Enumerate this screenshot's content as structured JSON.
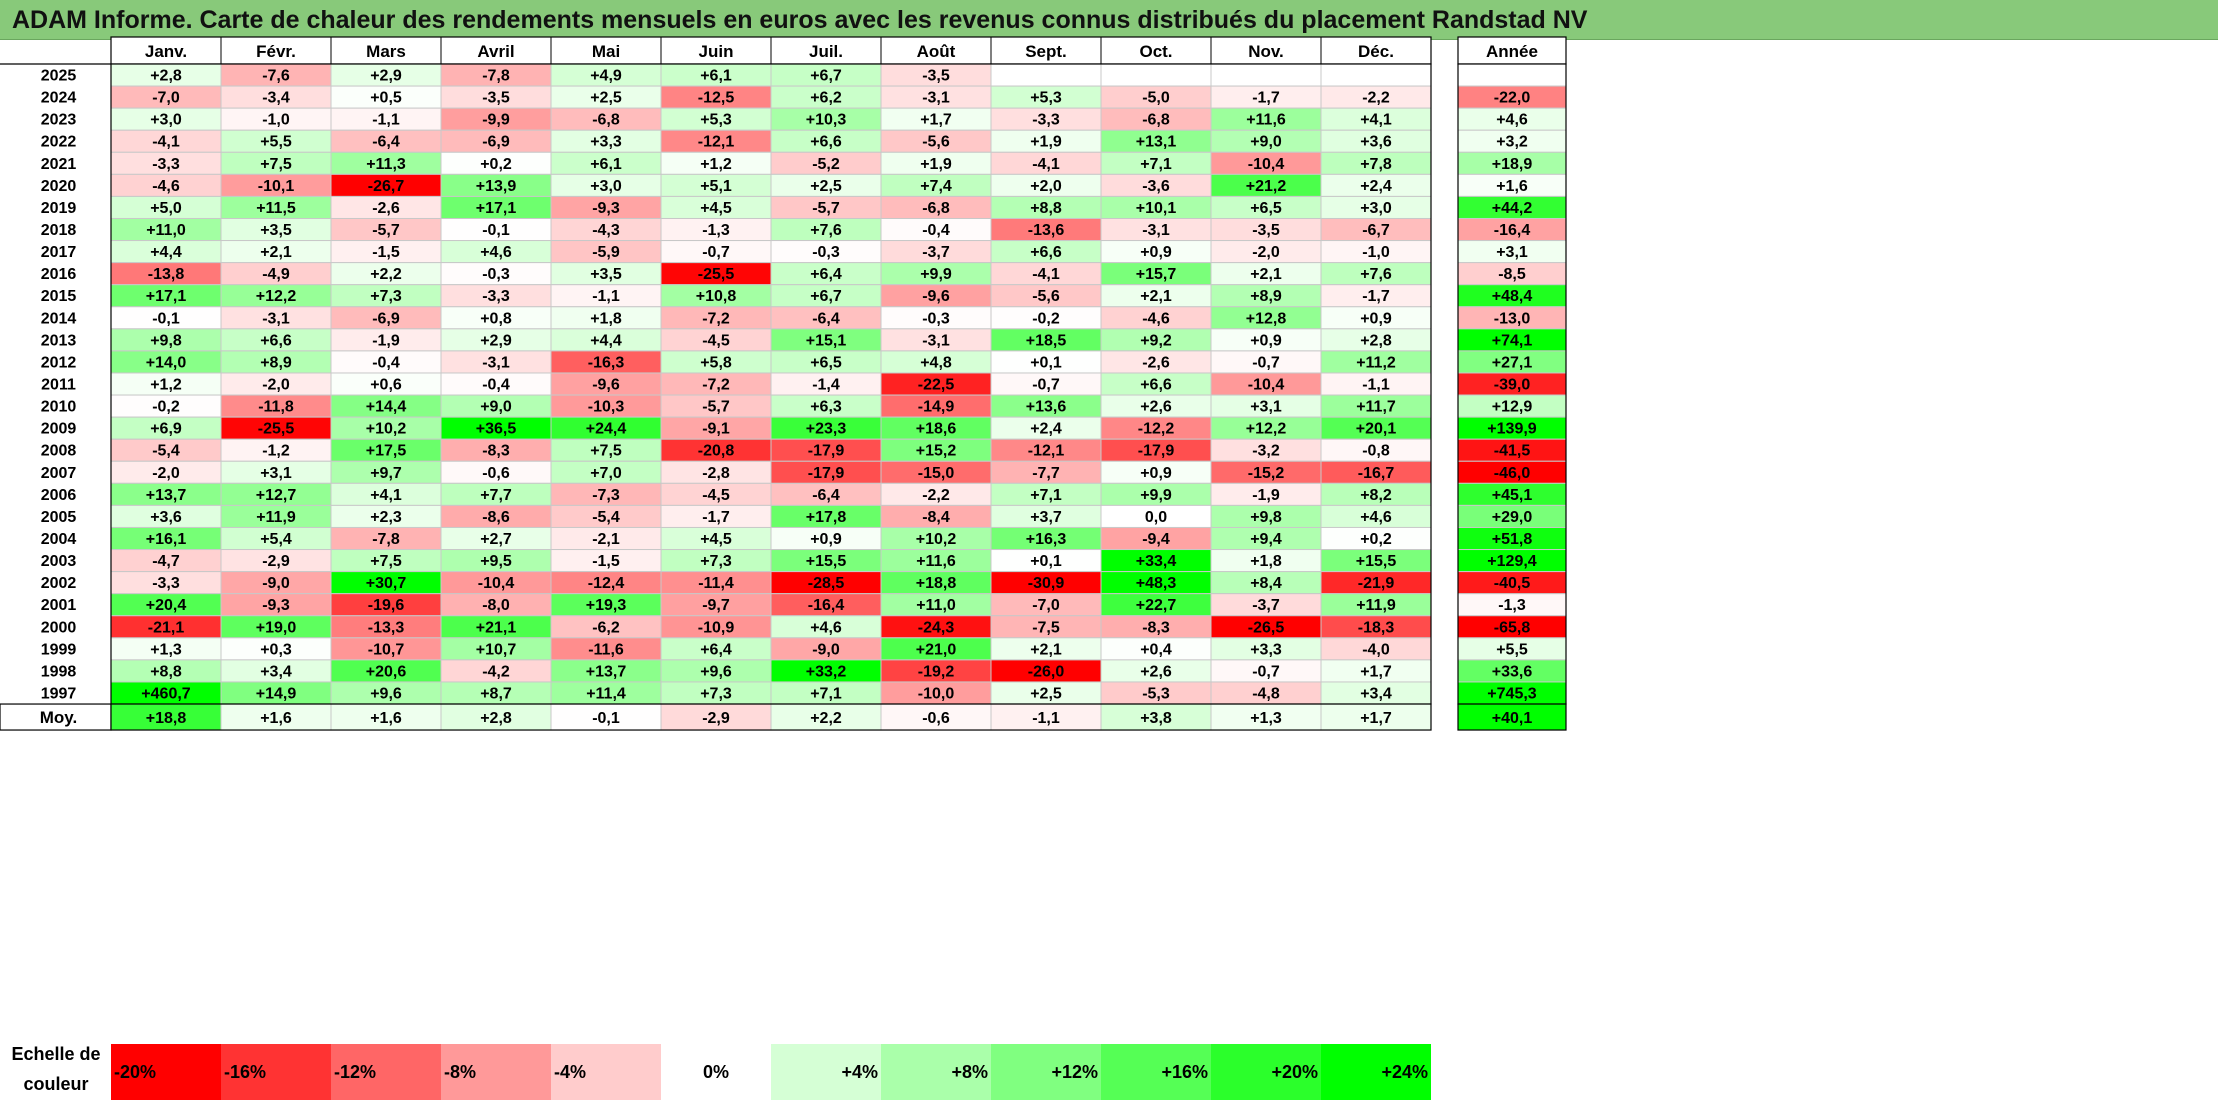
{
  "title": "ADAM Informe. Carte de chaleur des rendements mensuels en euros avec les revenus connus distribués du placement Randstad NV",
  "chart_data": {
    "type": "heatmap",
    "months": [
      "Janv.",
      "Févr.",
      "Mars",
      "Avril",
      "Mai",
      "Juin",
      "Juil.",
      "Août",
      "Sept.",
      "Oct.",
      "Nov.",
      "Déc."
    ],
    "annual_header": "Année",
    "rows": [
      {
        "year": "2025",
        "values": [
          "+2,8",
          "-7,6",
          "+2,9",
          "-7,8",
          "+4,9",
          "+6,1",
          "+6,7",
          "-3,5",
          "",
          "",
          "",
          ""
        ],
        "annual": ""
      },
      {
        "year": "2024",
        "values": [
          "-7,0",
          "-3,4",
          "+0,5",
          "-3,5",
          "+2,5",
          "-12,5",
          "+6,2",
          "-3,1",
          "+5,3",
          "-5,0",
          "-1,7",
          "-2,2"
        ],
        "annual": "-22,0"
      },
      {
        "year": "2023",
        "values": [
          "+3,0",
          "-1,0",
          "-1,1",
          "-9,9",
          "-6,8",
          "+5,3",
          "+10,3",
          "+1,7",
          "-3,3",
          "-6,8",
          "+11,6",
          "+4,1"
        ],
        "annual": "+4,6"
      },
      {
        "year": "2022",
        "values": [
          "-4,1",
          "+5,5",
          "-6,4",
          "-6,9",
          "+3,3",
          "-12,1",
          "+6,6",
          "-5,6",
          "+1,9",
          "+13,1",
          "+9,0",
          "+3,6"
        ],
        "annual": "+3,2"
      },
      {
        "year": "2021",
        "values": [
          "-3,3",
          "+7,5",
          "+11,3",
          "+0,2",
          "+6,1",
          "+1,2",
          "-5,2",
          "+1,9",
          "-4,1",
          "+7,1",
          "-10,4",
          "+7,8"
        ],
        "annual": "+18,9"
      },
      {
        "year": "2020",
        "values": [
          "-4,6",
          "-10,1",
          "-26,7",
          "+13,9",
          "+3,0",
          "+5,1",
          "+2,5",
          "+7,4",
          "+2,0",
          "-3,6",
          "+21,2",
          "+2,4"
        ],
        "annual": "+1,6"
      },
      {
        "year": "2019",
        "values": [
          "+5,0",
          "+11,5",
          "-2,6",
          "+17,1",
          "-9,3",
          "+4,5",
          "-5,7",
          "-6,8",
          "+8,8",
          "+10,1",
          "+6,5",
          "+3,0"
        ],
        "annual": "+44,2"
      },
      {
        "year": "2018",
        "values": [
          "+11,0",
          "+3,5",
          "-5,7",
          "-0,1",
          "-4,3",
          "-1,3",
          "+7,6",
          "-0,4",
          "-13,6",
          "-3,1",
          "-3,5",
          "-6,7"
        ],
        "annual": "-16,4"
      },
      {
        "year": "2017",
        "values": [
          "+4,4",
          "+2,1",
          "-1,5",
          "+4,6",
          "-5,9",
          "-0,7",
          "-0,3",
          "-3,7",
          "+6,6",
          "+0,9",
          "-2,0",
          "-1,0"
        ],
        "annual": "+3,1"
      },
      {
        "year": "2016",
        "values": [
          "-13,8",
          "-4,9",
          "+2,2",
          "-0,3",
          "+3,5",
          "-25,5",
          "+6,4",
          "+9,9",
          "-4,1",
          "+15,7",
          "+2,1",
          "+7,6"
        ],
        "annual": "-8,5"
      },
      {
        "year": "2015",
        "values": [
          "+17,1",
          "+12,2",
          "+7,3",
          "-3,3",
          "-1,1",
          "+10,8",
          "+6,7",
          "-9,6",
          "-5,6",
          "+2,1",
          "+8,9",
          "-1,7"
        ],
        "annual": "+48,4"
      },
      {
        "year": "2014",
        "values": [
          "-0,1",
          "-3,1",
          "-6,9",
          "+0,8",
          "+1,8",
          "-7,2",
          "-6,4",
          "-0,3",
          "-0,2",
          "-4,6",
          "+12,8",
          "+0,9"
        ],
        "annual": "-13,0"
      },
      {
        "year": "2013",
        "values": [
          "+9,8",
          "+6,6",
          "-1,9",
          "+2,9",
          "+4,4",
          "-4,5",
          "+15,1",
          "-3,1",
          "+18,5",
          "+9,2",
          "+0,9",
          "+2,8"
        ],
        "annual": "+74,1"
      },
      {
        "year": "2012",
        "values": [
          "+14,0",
          "+8,9",
          "-0,4",
          "-3,1",
          "-16,3",
          "+5,8",
          "+6,5",
          "+4,8",
          "+0,1",
          "-2,6",
          "-0,7",
          "+11,2"
        ],
        "annual": "+27,1"
      },
      {
        "year": "2011",
        "values": [
          "+1,2",
          "-2,0",
          "+0,6",
          "-0,4",
          "-9,6",
          "-7,2",
          "-1,4",
          "-22,5",
          "-0,7",
          "+6,6",
          "-10,4",
          "-1,1"
        ],
        "annual": "-39,0"
      },
      {
        "year": "2010",
        "values": [
          "-0,2",
          "-11,8",
          "+14,4",
          "+9,0",
          "-10,3",
          "-5,7",
          "+6,3",
          "-14,9",
          "+13,6",
          "+2,6",
          "+3,1",
          "+11,7"
        ],
        "annual": "+12,9"
      },
      {
        "year": "2009",
        "values": [
          "+6,9",
          "-25,5",
          "+10,2",
          "+36,5",
          "+24,4",
          "-9,1",
          "+23,3",
          "+18,6",
          "+2,4",
          "-12,2",
          "+12,2",
          "+20,1"
        ],
        "annual": "+139,9"
      },
      {
        "year": "2008",
        "values": [
          "-5,4",
          "-1,2",
          "+17,5",
          "-8,3",
          "+7,5",
          "-20,8",
          "-17,9",
          "+15,2",
          "-12,1",
          "-17,9",
          "-3,2",
          "-0,8"
        ],
        "annual": "-41,5"
      },
      {
        "year": "2007",
        "values": [
          "-2,0",
          "+3,1",
          "+9,7",
          "-0,6",
          "+7,0",
          "-2,8",
          "-17,9",
          "-15,0",
          "-7,7",
          "+0,9",
          "-15,2",
          "-16,7"
        ],
        "annual": "-46,0"
      },
      {
        "year": "2006",
        "values": [
          "+13,7",
          "+12,7",
          "+4,1",
          "+7,7",
          "-7,3",
          "-4,5",
          "-6,4",
          "-2,2",
          "+7,1",
          "+9,9",
          "-1,9",
          "+8,2"
        ],
        "annual": "+45,1"
      },
      {
        "year": "2005",
        "values": [
          "+3,6",
          "+11,9",
          "+2,3",
          "-8,6",
          "-5,4",
          "-1,7",
          "+17,8",
          "-8,4",
          "+3,7",
          "0,0",
          "+9,8",
          "+4,6"
        ],
        "annual": "+29,0"
      },
      {
        "year": "2004",
        "values": [
          "+16,1",
          "+5,4",
          "-7,8",
          "+2,7",
          "-2,1",
          "+4,5",
          "+0,9",
          "+10,2",
          "+16,3",
          "-9,4",
          "+9,4",
          "+0,2"
        ],
        "annual": "+51,8"
      },
      {
        "year": "2003",
        "values": [
          "-4,7",
          "-2,9",
          "+7,5",
          "+9,5",
          "-1,5",
          "+7,3",
          "+15,5",
          "+11,6",
          "+0,1",
          "+33,4",
          "+1,8",
          "+15,5"
        ],
        "annual": "+129,4"
      },
      {
        "year": "2002",
        "values": [
          "-3,3",
          "-9,0",
          "+30,7",
          "-10,4",
          "-12,4",
          "-11,4",
          "-28,5",
          "+18,8",
          "-30,9",
          "+48,3",
          "+8,4",
          "-21,9"
        ],
        "annual": "-40,5"
      },
      {
        "year": "2001",
        "values": [
          "+20,4",
          "-9,3",
          "-19,6",
          "-8,0",
          "+19,3",
          "-9,7",
          "-16,4",
          "+11,0",
          "-7,0",
          "+22,7",
          "-3,7",
          "+11,9"
        ],
        "annual": "-1,3"
      },
      {
        "year": "2000",
        "values": [
          "-21,1",
          "+19,0",
          "-13,3",
          "+21,1",
          "-6,2",
          "-10,9",
          "+4,6",
          "-24,3",
          "-7,5",
          "-8,3",
          "-26,5",
          "-18,3"
        ],
        "annual": "-65,8"
      },
      {
        "year": "1999",
        "values": [
          "+1,3",
          "+0,3",
          "-10,7",
          "+10,7",
          "-11,6",
          "+6,4",
          "-9,0",
          "+21,0",
          "+2,1",
          "+0,4",
          "+3,3",
          "-4,0"
        ],
        "annual": "+5,5"
      },
      {
        "year": "1998",
        "values": [
          "+8,8",
          "+3,4",
          "+20,6",
          "-4,2",
          "+13,7",
          "+9,6",
          "+33,2",
          "-19,2",
          "-26,0",
          "+2,6",
          "-0,7",
          "+1,7"
        ],
        "annual": "+33,6"
      },
      {
        "year": "1997",
        "values": [
          "+460,7",
          "+14,9",
          "+9,6",
          "+8,7",
          "+11,4",
          "+7,3",
          "+7,1",
          "-10,0",
          "+2,5",
          "-5,3",
          "-4,8",
          "+3,4"
        ],
        "annual": "+745,3"
      }
    ],
    "average": {
      "label": "Moy.",
      "values": [
        "+18,8",
        "+1,6",
        "+1,6",
        "+2,8",
        "-0,1",
        "-2,9",
        "+2,2",
        "-0,6",
        "-1,1",
        "+3,8",
        "+1,3",
        "+1,7"
      ],
      "annual": "+40,1"
    },
    "scale": {
      "label_line1": "Echelle de",
      "label_line2": "couleur",
      "labels": [
        "-20%",
        "-16%",
        "-12%",
        "-8%",
        "-4%",
        "0%",
        "+4%",
        "+8%",
        "+12%",
        "+16%",
        "+20%",
        "+24%"
      ]
    },
    "colors": {
      "negative": "#ff0000",
      "positive": "#00ff00",
      "neutral": "#ffffff",
      "title_bar": "#88c97a"
    }
  }
}
